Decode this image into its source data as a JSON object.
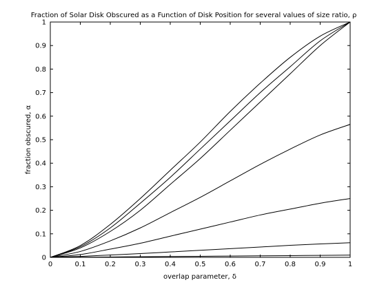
{
  "chart_data": {
    "type": "line",
    "title": "Fraction of Solar Disk Obscured as a Function of Disk Position for several values of size ratio, ρ",
    "xlabel": "overlap parameter, δ",
    "ylabel": "fraction obscured, α",
    "xlim": [
      0,
      1
    ],
    "ylim": [
      0,
      1
    ],
    "grid": false,
    "legend": "none",
    "x_ticks": [
      0,
      0.1,
      0.2,
      0.3,
      0.4,
      0.5,
      0.6,
      0.7,
      0.8,
      0.9,
      1
    ],
    "x_tick_labels": [
      "0",
      "0.1",
      "0.2",
      "0.3",
      "0.4",
      "0.5",
      "0.6",
      "0.7",
      "0.8",
      "0.9",
      "1"
    ],
    "y_ticks": [
      0,
      0.1,
      0.2,
      0.3,
      0.4,
      0.5,
      0.6,
      0.7,
      0.8,
      0.9,
      1
    ],
    "y_tick_labels": [
      "0",
      "0.1",
      "0.2",
      "0.3",
      "0.4",
      "0.5",
      "0.6",
      "0.7",
      "0.8",
      "0.9",
      "1"
    ],
    "x": [
      0,
      0.1,
      0.2,
      0.3,
      0.4,
      0.5,
      0.6,
      0.7,
      0.8,
      0.9,
      1.0
    ],
    "series": [
      {
        "values": [
          0,
          0.05,
          0.14,
          0.25,
          0.37,
          0.49,
          0.62,
          0.74,
          0.85,
          0.94,
          1.0
        ],
        "color": "#000000"
      },
      {
        "values": [
          0,
          0.045,
          0.125,
          0.23,
          0.34,
          0.46,
          0.58,
          0.7,
          0.81,
          0.92,
          1.0
        ],
        "color": "#000000"
      },
      {
        "values": [
          0,
          0.04,
          0.11,
          0.2,
          0.31,
          0.42,
          0.54,
          0.66,
          0.78,
          0.9,
          1.0
        ],
        "color": "#000000"
      },
      {
        "values": [
          0,
          0.025,
          0.07,
          0.125,
          0.19,
          0.255,
          0.325,
          0.395,
          0.46,
          0.52,
          0.565
        ],
        "color": "#000000"
      },
      {
        "values": [
          0,
          0.012,
          0.035,
          0.06,
          0.09,
          0.12,
          0.15,
          0.18,
          0.205,
          0.23,
          0.25
        ],
        "color": "#000000"
      },
      {
        "values": [
          0,
          0.004,
          0.01,
          0.016,
          0.023,
          0.03,
          0.037,
          0.044,
          0.051,
          0.057,
          0.062
        ],
        "color": "#000000"
      },
      {
        "values": [
          0,
          0.0006,
          0.0016,
          0.0025,
          0.0035,
          0.0045,
          0.0055,
          0.0065,
          0.0075,
          0.0085,
          0.0095
        ],
        "color": "#000000"
      }
    ]
  }
}
